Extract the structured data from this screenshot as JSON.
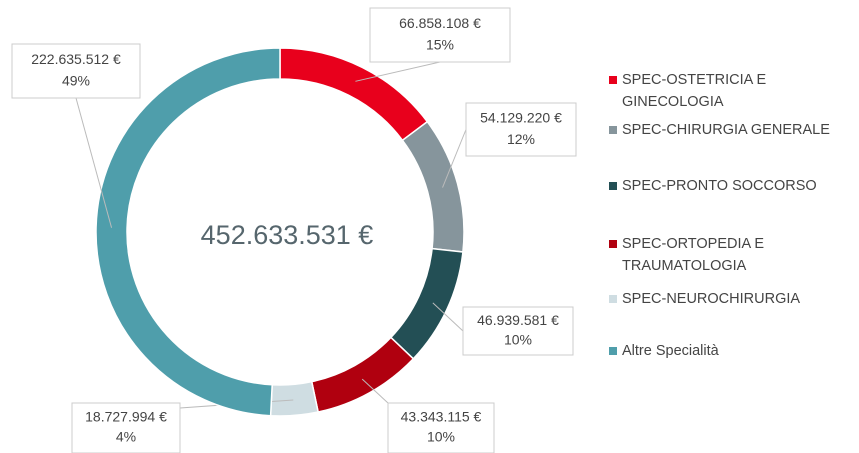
{
  "chart_data": {
    "type": "donut",
    "center_label": "452.633.531 €",
    "categories": [
      "SPEC-OSTETRICIA E GINECOLOGIA",
      "SPEC-CHIRURGIA GENERALE",
      "SPEC-PRONTO SOCCORSO",
      "SPEC-ORTOPEDIA E TRAUMATOLOGIA",
      "SPEC-NEUROCHIRURGIA",
      "Altre Specialità"
    ],
    "values": [
      66858108,
      54129220,
      46939581,
      43343115,
      18727994,
      222635512
    ],
    "value_labels": [
      "66.858.108 €",
      "54.129.220 €",
      "46.939.581 €",
      "43.343.115 €",
      "18.727.994 €",
      "222.635.512 €"
    ],
    "percent_labels": [
      "15%",
      "12%",
      "10%",
      "10%",
      "4%",
      "49%"
    ],
    "colors": [
      "#e8001c",
      "#86959c",
      "#234f55",
      "#b0000f",
      "#cfdde2",
      "#4f9eab"
    ],
    "legend": "right"
  }
}
